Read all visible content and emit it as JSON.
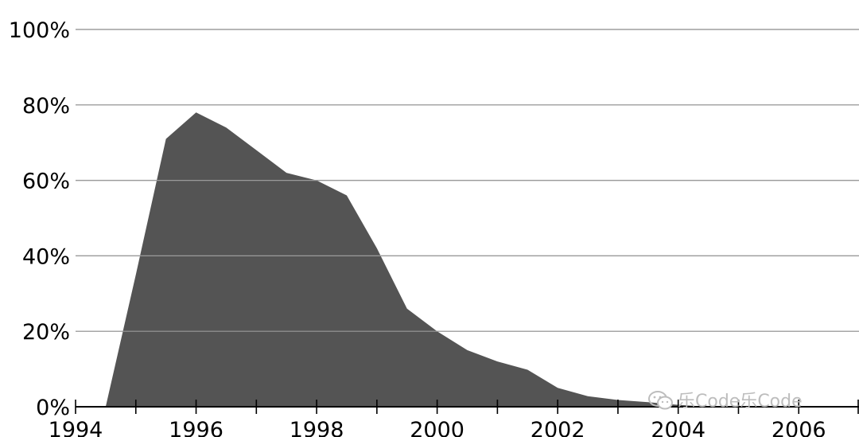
{
  "chart_data": {
    "type": "area",
    "title": "",
    "xlabel": "",
    "ylabel": "",
    "x": [
      1994.5,
      1995.0,
      1995.5,
      1996.0,
      1996.5,
      1997.0,
      1997.5,
      1998.0,
      1998.5,
      1999.0,
      1999.5,
      2000.0,
      2000.5,
      2001.0,
      2001.5,
      2002.0,
      2002.5,
      2003.0,
      2003.5,
      2004.0,
      2004.5
    ],
    "values": [
      0,
      35,
      71,
      78,
      74,
      68,
      62,
      60,
      56,
      42,
      26,
      20,
      15,
      12,
      9.8,
      5,
      2.8,
      1.8,
      1.2,
      0.5,
      0
    ],
    "xlim": [
      1994,
      2007
    ],
    "ylim": [
      0,
      100
    ],
    "x_ticks": [
      1994,
      1995,
      1996,
      1997,
      1998,
      1999,
      2000,
      2001,
      2002,
      2003,
      2004,
      2005,
      2006,
      2007
    ],
    "x_tick_labels": [
      "1994",
      "1996",
      "1998",
      "2000",
      "2002",
      "2004",
      "2006"
    ],
    "x_tick_label_values": [
      1994,
      1996,
      1998,
      2000,
      2002,
      2004,
      2006
    ],
    "y_ticks": [
      0,
      20,
      40,
      60,
      80,
      100
    ],
    "y_tick_labels": [
      "0%",
      "20%",
      "40%",
      "60%",
      "80%",
      "100%"
    ],
    "grid": true,
    "legend": "none",
    "colors": {
      "area": "#545454",
      "grid": "#cccccc",
      "axis": "#000000",
      "text": "#000000"
    }
  },
  "watermark": {
    "text": "乐Code乐Code",
    "icon": "wechat-icon"
  }
}
